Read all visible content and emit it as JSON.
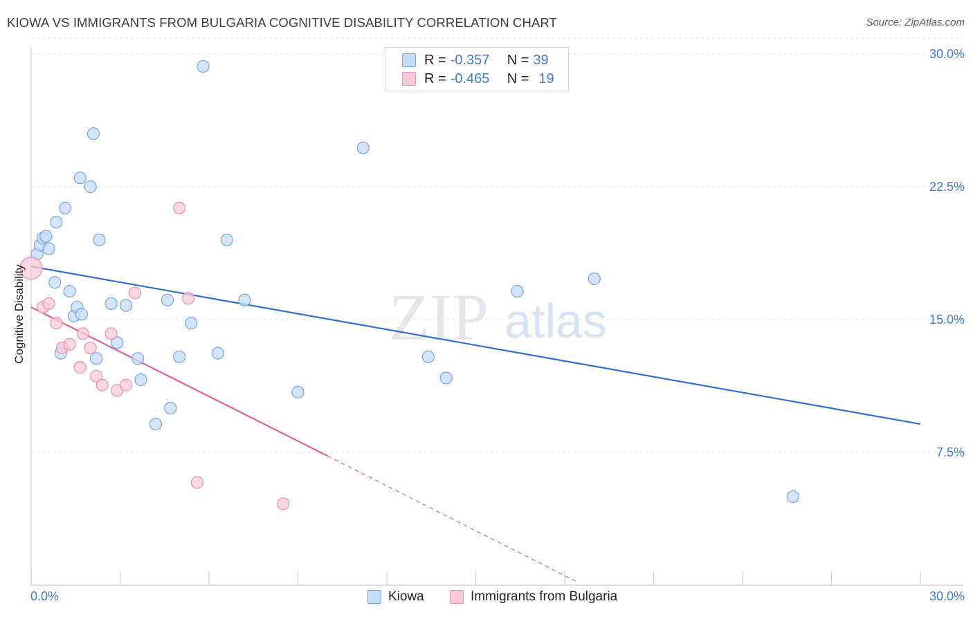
{
  "title": "KIOWA VS IMMIGRANTS FROM BULGARIA COGNITIVE DISABILITY CORRELATION CHART",
  "source": "Source: ZipAtlas.com",
  "watermark": {
    "zip": "ZIP",
    "atlas": "atlas"
  },
  "chart_data": {
    "type": "scatter",
    "ylabel": "Cognitive Disability",
    "xlim": [
      0,
      30
    ],
    "ylim": [
      0,
      30
    ],
    "x_tick_labels": {
      "min": "0.0%",
      "max": "30.0%"
    },
    "y_ticks": [
      {
        "value": 7.5,
        "label": "7.5%"
      },
      {
        "value": 15.0,
        "label": "15.0%"
      },
      {
        "value": 22.5,
        "label": "22.5%"
      },
      {
        "value": 30.0,
        "label": "30.0%"
      }
    ],
    "series": [
      {
        "name": "Kiowa",
        "color": "#6fa3e8",
        "fill": "#c7dcf7",
        "line_color": "#2e6fce",
        "stats": {
          "r_label": "R =",
          "r": "-0.357",
          "n_label": "N =",
          "n": "39"
        },
        "trend": {
          "x0": 0.0,
          "y0": 18.0,
          "x1": 30.0,
          "y1": 9.1
        },
        "points": [
          [
            0.2,
            18.7
          ],
          [
            0.3,
            19.2
          ],
          [
            0.4,
            19.6
          ],
          [
            0.5,
            19.7
          ],
          [
            0.6,
            19.0
          ],
          [
            0.8,
            17.1
          ],
          [
            0.85,
            20.5
          ],
          [
            1.0,
            13.1
          ],
          [
            1.15,
            21.3
          ],
          [
            1.3,
            16.6
          ],
          [
            1.45,
            15.2
          ],
          [
            1.55,
            15.7
          ],
          [
            1.7,
            15.3
          ],
          [
            1.65,
            23.0
          ],
          [
            2.0,
            22.5
          ],
          [
            2.1,
            25.5
          ],
          [
            2.2,
            12.8
          ],
          [
            2.3,
            19.5
          ],
          [
            2.7,
            15.9
          ],
          [
            2.9,
            13.7
          ],
          [
            3.2,
            15.8
          ],
          [
            3.6,
            12.8
          ],
          [
            3.7,
            11.6
          ],
          [
            4.2,
            9.1
          ],
          [
            4.6,
            16.1
          ],
          [
            4.7,
            10.0
          ],
          [
            5.0,
            12.9
          ],
          [
            5.4,
            14.8
          ],
          [
            5.8,
            29.3
          ],
          [
            6.3,
            13.1
          ],
          [
            6.6,
            19.5
          ],
          [
            7.2,
            16.1
          ],
          [
            9.0,
            10.9
          ],
          [
            11.2,
            24.7
          ],
          [
            13.4,
            12.9
          ],
          [
            14.0,
            11.7
          ],
          [
            16.4,
            16.6
          ],
          [
            19.0,
            17.3
          ],
          [
            25.7,
            5.0
          ]
        ]
      },
      {
        "name": "Immigrants from Bulgaria",
        "color": "#ea8fb0",
        "fill": "#f7c9d9",
        "line_color": "#e0609a",
        "stats": {
          "r_label": "R =",
          "r": "-0.465",
          "n_label": "N =",
          "n": "19"
        },
        "trend": {
          "x0": 0.0,
          "y0": 15.7,
          "x1": 10.0,
          "y1": 7.3,
          "dash_x1": 18.4,
          "dash_y1": 0.2
        },
        "points": [
          [
            0.0,
            17.9
          ],
          [
            0.4,
            15.7
          ],
          [
            0.6,
            15.9
          ],
          [
            0.85,
            14.8
          ],
          [
            1.05,
            13.4
          ],
          [
            1.3,
            13.6
          ],
          [
            1.65,
            12.3
          ],
          [
            1.75,
            14.2
          ],
          [
            2.0,
            13.4
          ],
          [
            2.2,
            11.8
          ],
          [
            2.4,
            11.3
          ],
          [
            2.7,
            14.2
          ],
          [
            2.9,
            11.0
          ],
          [
            3.2,
            11.3
          ],
          [
            3.5,
            16.5
          ],
          [
            5.0,
            21.3
          ],
          [
            5.3,
            16.2
          ],
          [
            5.6,
            5.8
          ],
          [
            8.5,
            4.6
          ]
        ]
      }
    ]
  }
}
